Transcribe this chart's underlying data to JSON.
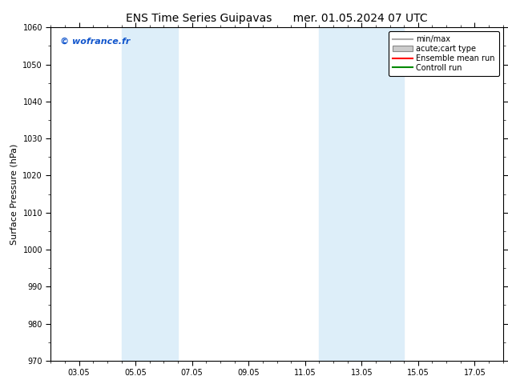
{
  "title_left": "ENS Time Series Guipavas",
  "title_right": "mer. 01.05.2024 07 UTC",
  "ylabel": "Surface Pressure (hPa)",
  "ylim": [
    970,
    1060
  ],
  "yticks": [
    970,
    980,
    990,
    1000,
    1010,
    1020,
    1030,
    1040,
    1050,
    1060
  ],
  "xtick_labels": [
    "03.05",
    "05.05",
    "07.05",
    "09.05",
    "11.05",
    "13.05",
    "15.05",
    "17.05"
  ],
  "xtick_positions": [
    2,
    4,
    6,
    8,
    10,
    12,
    14,
    16
  ],
  "xlim": [
    1,
    17
  ],
  "shade_bands": [
    {
      "xmin": 3.5,
      "xmax": 5.5,
      "color": "#ddeef9",
      "alpha": 1.0
    },
    {
      "xmin": 10.5,
      "xmax": 12.5,
      "color": "#ddeef9",
      "alpha": 1.0
    },
    {
      "xmin": 12.5,
      "xmax": 13.5,
      "color": "#ddeef9",
      "alpha": 1.0
    }
  ],
  "watermark": "© wofrance.fr",
  "watermark_color": "#1155cc",
  "background_color": "#ffffff",
  "legend_items": [
    {
      "label": "min/max",
      "color": "#aaaaaa",
      "type": "hline"
    },
    {
      "label": "acute;cart type",
      "color": "#cccccc",
      "type": "box"
    },
    {
      "label": "Ensemble mean run",
      "color": "#ff0000",
      "type": "line"
    },
    {
      "label": "Controll run",
      "color": "#008800",
      "type": "line"
    }
  ],
  "title_fontsize": 10,
  "ylabel_fontsize": 8,
  "tick_fontsize": 7,
  "legend_fontsize": 7,
  "watermark_fontsize": 8
}
